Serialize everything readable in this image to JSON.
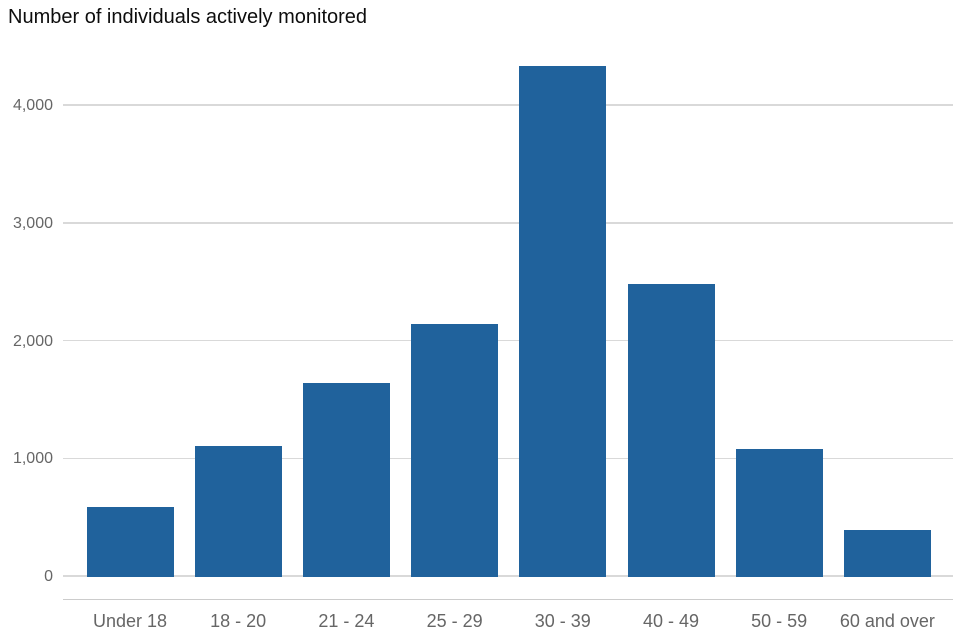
{
  "chart_data": {
    "type": "bar",
    "title": "Number of individuals actively monitored",
    "categories": [
      "Under 18",
      "18 - 20",
      "21 - 24",
      "25 - 29",
      "30 - 39",
      "40 - 49",
      "50 - 59",
      "60 and over"
    ],
    "values": [
      590,
      1100,
      1640,
      2140,
      4330,
      2480,
      1080,
      390
    ],
    "xlabel": "",
    "ylabel": "",
    "ylim": [
      0,
      4400
    ],
    "yticks": [
      0,
      1000,
      2000,
      3000,
      4000
    ],
    "ytick_labels": [
      "0",
      "1,000",
      "2,000",
      "3,000",
      "4,000"
    ],
    "grid": "horizontal-only",
    "legend": "none",
    "colors": {
      "bar": "#20629c",
      "gridline": "#d9d9d9",
      "axis_line": "#cccccc",
      "axis_labels": "#666666",
      "title": "#0d0d0d",
      "background": "#ffffff"
    }
  }
}
